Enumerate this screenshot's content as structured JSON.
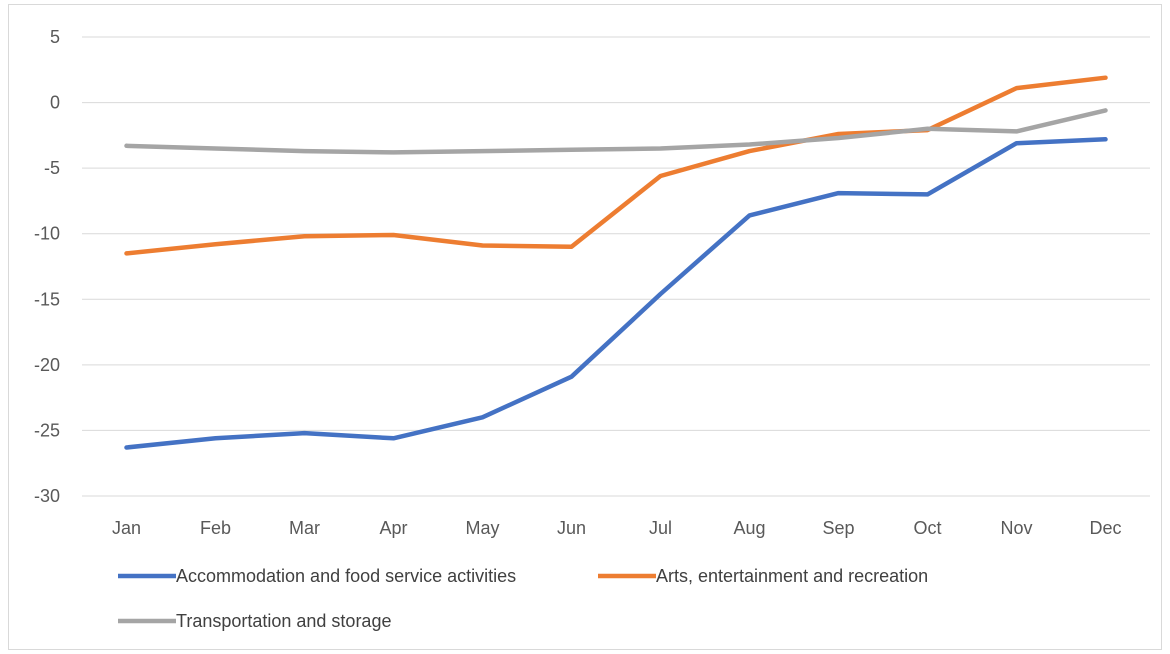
{
  "chart_data": {
    "type": "line",
    "title": "",
    "xlabel": "",
    "ylabel": "",
    "categories": [
      "Jan",
      "Feb",
      "Mar",
      "Apr",
      "May",
      "Jun",
      "Jul",
      "Aug",
      "Sep",
      "Oct",
      "Nov",
      "Dec"
    ],
    "ylim": [
      -30,
      5
    ],
    "yticks": [
      5,
      0,
      -5,
      -10,
      -15,
      -20,
      -25,
      -30
    ],
    "grid": true,
    "legend_position": "bottom",
    "series": [
      {
        "name": "Accommodation and food service activities",
        "color": "#4472c4",
        "values": [
          -26.3,
          -25.6,
          -25.2,
          -25.6,
          -24.0,
          -20.9,
          -14.6,
          -8.6,
          -6.9,
          -7.0,
          -3.1,
          -2.8
        ]
      },
      {
        "name": "Arts, entertainment and recreation",
        "color": "#ed7d31",
        "values": [
          -11.5,
          -10.8,
          -10.2,
          -10.1,
          -10.9,
          -11.0,
          -5.6,
          -3.7,
          -2.4,
          -2.1,
          1.1,
          1.9
        ]
      },
      {
        "name": "Transportation and storage",
        "color": "#a5a5a5",
        "values": [
          -3.3,
          -3.5,
          -3.7,
          -3.8,
          -3.7,
          -3.6,
          -3.5,
          -3.2,
          -2.7,
          -2.0,
          -2.2,
          -0.6
        ]
      }
    ]
  }
}
